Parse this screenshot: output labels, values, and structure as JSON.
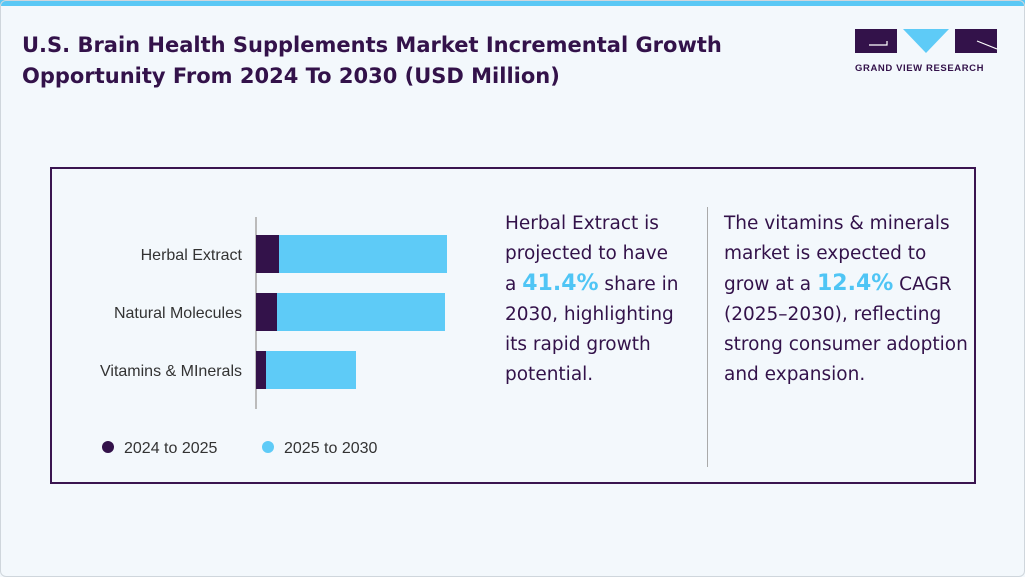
{
  "header": {
    "title": "U.S. Brain Health Supplements Market Incremental Growth Opportunity From 2024 To 2030 (USD Million)",
    "logo_text": "GRAND VIEW RESEARCH"
  },
  "colors": {
    "dark": "#33124a",
    "light": "#5ecbf7"
  },
  "chart_data": {
    "type": "bar",
    "orientation": "horizontal",
    "stacked": true,
    "categories": [
      "Herbal Extract",
      "Natural Molecules",
      "Vitamins & MInerals"
    ],
    "series": [
      {
        "name": "2024 to 2025",
        "color": "#33124a",
        "values": [
          23,
          21,
          10
        ]
      },
      {
        "name": "2025 to 2030",
        "color": "#5ecbf7",
        "values": [
          168,
          168,
          90
        ]
      }
    ],
    "legend": "bottom",
    "grid": false,
    "note": "no value axis printed; values are relative"
  },
  "insight1": {
    "pre": "Herbal Extract is projected to have a ",
    "highlight": "41.4%",
    "post": " share in 2030, highlighting its rapid growth potential."
  },
  "insight2": {
    "pre": "The vitamins & minerals market is expected to grow at a ",
    "highlight": "12.4%",
    "post": " CAGR (2025–2030), reflecting strong consumer adoption and expansion."
  }
}
